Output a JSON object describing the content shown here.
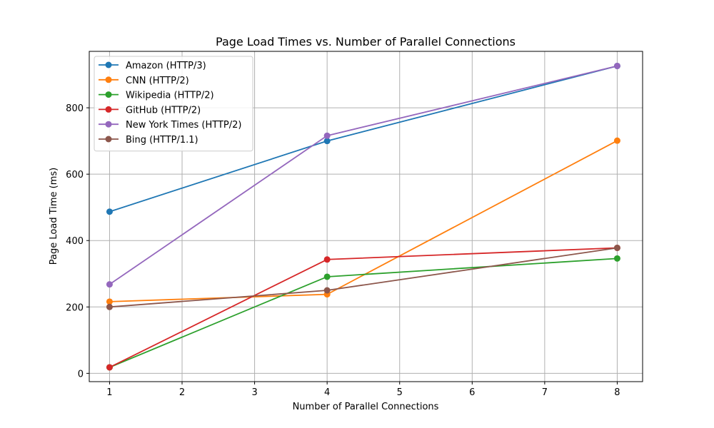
{
  "chart_data": {
    "type": "line",
    "title": "Page Load Times vs. Number of Parallel Connections",
    "xlabel": "Number of Parallel Connections",
    "ylabel": "Page Load Time (ms)",
    "x": [
      1,
      4,
      8
    ],
    "xlim": [
      0.72,
      8.35
    ],
    "ylim": [
      -25,
      970
    ],
    "xticks": [
      1,
      2,
      3,
      4,
      5,
      6,
      7,
      8
    ],
    "yticks": [
      0,
      200,
      400,
      600,
      800
    ],
    "grid": true,
    "legend_position": "upper-left",
    "series": [
      {
        "name": "Amazon (HTTP/3)",
        "color": "#1f77b4",
        "values": [
          487,
          700,
          926
        ]
      },
      {
        "name": "CNN (HTTP/2)",
        "color": "#ff7f0e",
        "values": [
          216,
          238,
          701
        ]
      },
      {
        "name": "Wikipedia (HTTP/2)",
        "color": "#2ca02c",
        "values": [
          18,
          291,
          346
        ]
      },
      {
        "name": "GitHub (HTTP/2)",
        "color": "#d62728",
        "values": [
          18,
          343,
          378
        ]
      },
      {
        "name": "New York Times (HTTP/2)",
        "color": "#9467bd",
        "values": [
          268,
          716,
          926
        ]
      },
      {
        "name": "Bing (HTTP/1.1)",
        "color": "#8c564b",
        "values": [
          200,
          250,
          378
        ]
      }
    ]
  }
}
